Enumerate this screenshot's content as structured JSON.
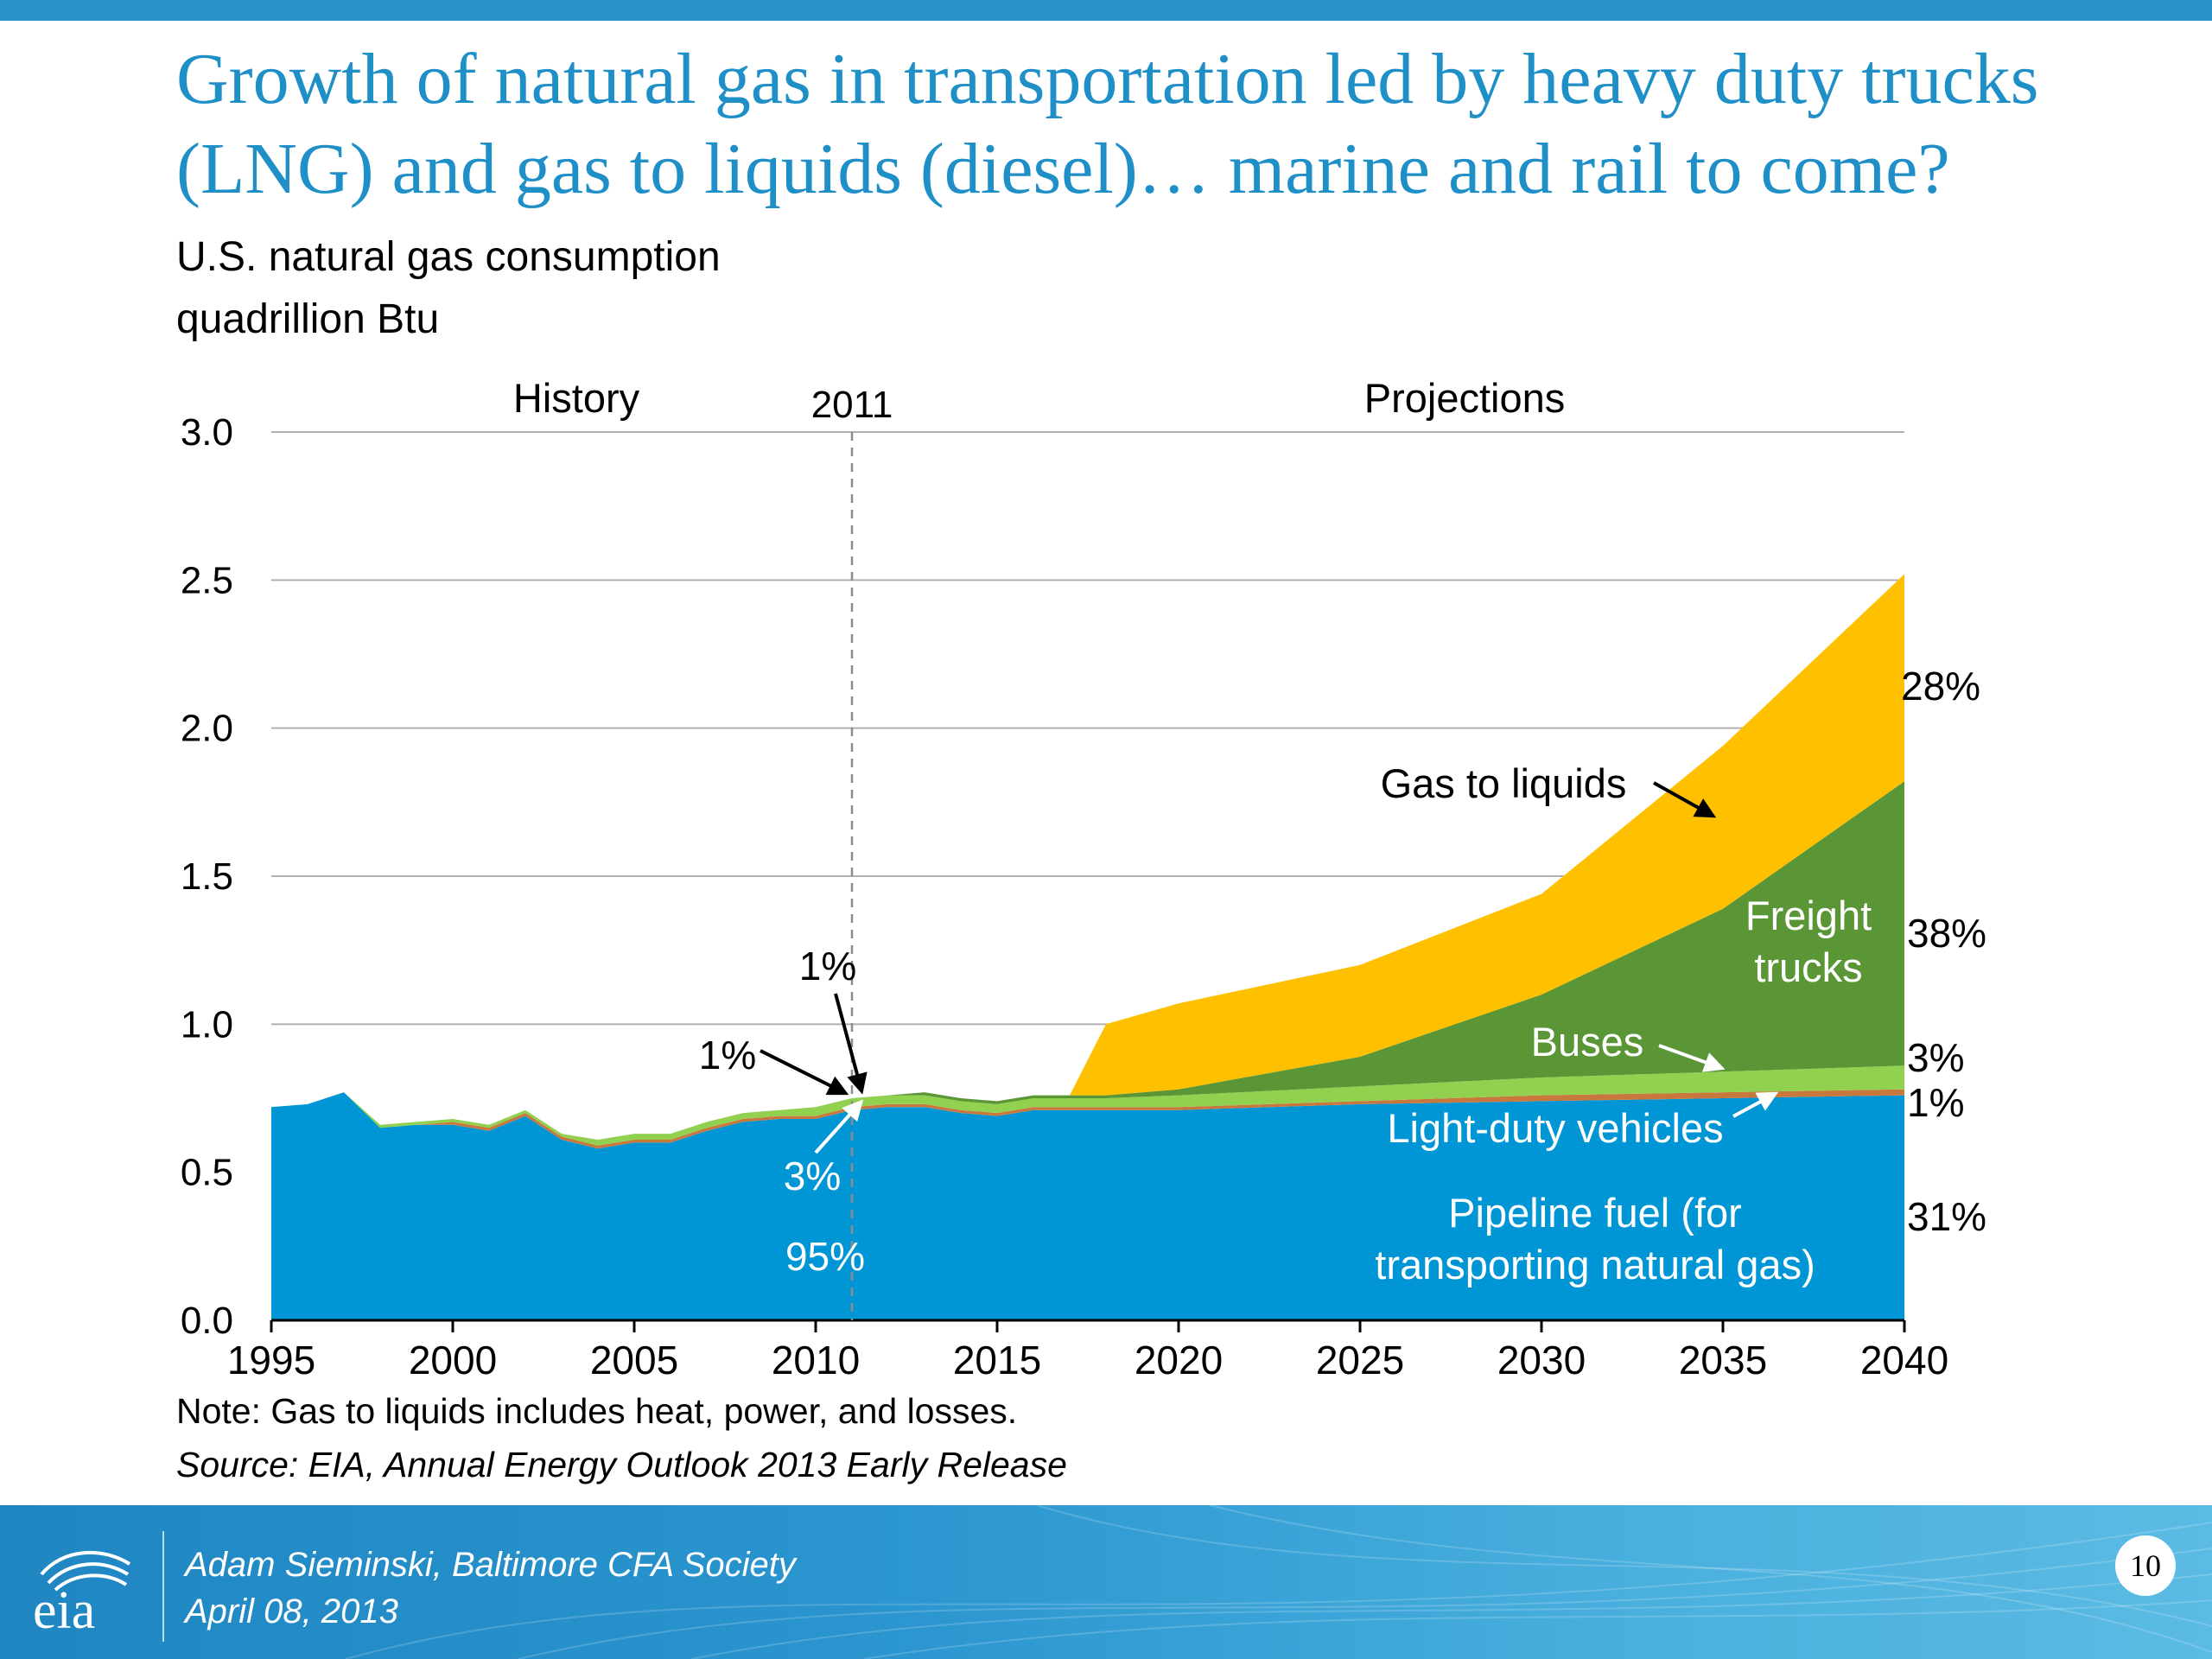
{
  "slide": {
    "title_line1": "Growth of natural gas in transportation led by heavy duty trucks",
    "title_line2": "(LNG) and gas to liquids (diesel)… marine and rail to come?",
    "note": "Note:  Gas to liquids includes heat, power, and losses.",
    "source": "Source:  EIA, Annual Energy Outlook 2013 Early Release",
    "presenter": "Adam Sieminski, Baltimore CFA Society",
    "date": "April 08, 2013",
    "page_number": "10",
    "logo_text": "eia"
  },
  "chart_data": {
    "type": "area",
    "stacked": true,
    "title": "U.S. natural gas consumption",
    "ylabel": "quadrillion Btu",
    "xlabel": "",
    "xlim": [
      1995,
      2040
    ],
    "ylim": [
      0,
      3.0
    ],
    "x_ticks": [
      "1995",
      "2000",
      "2005",
      "2010",
      "2015",
      "2020",
      "2025",
      "2030",
      "2035",
      "2040"
    ],
    "y_ticks": [
      "0.0",
      "0.5",
      "1.0",
      "1.5",
      "2.0",
      "2.5",
      "3.0"
    ],
    "grid": "horizontal",
    "divider_year": 2011,
    "divider_label": "2011",
    "history_label": "History",
    "projections_label": "Projections",
    "x": [
      1995,
      1996,
      1997,
      1998,
      1999,
      2000,
      2001,
      2002,
      2003,
      2004,
      2005,
      2006,
      2007,
      2008,
      2009,
      2010,
      2011,
      2012,
      2013,
      2014,
      2015,
      2016,
      2017,
      2018,
      2020,
      2025,
      2030,
      2035,
      2040
    ],
    "series": [
      {
        "name": "Pipeline fuel (for transporting natural gas)",
        "color": "#0096d6",
        "values": [
          0.72,
          0.73,
          0.77,
          0.65,
          0.66,
          0.66,
          0.64,
          0.69,
          0.61,
          0.58,
          0.6,
          0.6,
          0.64,
          0.67,
          0.68,
          0.68,
          0.71,
          0.72,
          0.72,
          0.7,
          0.69,
          0.71,
          0.71,
          0.71,
          0.71,
          0.73,
          0.74,
          0.75,
          0.76
        ]
      },
      {
        "name": "Light-duty vehicles",
        "color": "#c8783c",
        "values": [
          0.0,
          0.0,
          0.0,
          0.0,
          0.0,
          0.01,
          0.01,
          0.01,
          0.01,
          0.01,
          0.01,
          0.01,
          0.01,
          0.01,
          0.01,
          0.01,
          0.01,
          0.01,
          0.01,
          0.01,
          0.01,
          0.01,
          0.01,
          0.01,
          0.01,
          0.01,
          0.02,
          0.02,
          0.02
        ]
      },
      {
        "name": "Buses",
        "color": "#92d050",
        "values": [
          0.0,
          0.0,
          0.0,
          0.01,
          0.01,
          0.01,
          0.01,
          0.01,
          0.01,
          0.02,
          0.02,
          0.02,
          0.02,
          0.02,
          0.02,
          0.03,
          0.03,
          0.03,
          0.03,
          0.03,
          0.03,
          0.03,
          0.03,
          0.03,
          0.04,
          0.05,
          0.06,
          0.07,
          0.08
        ]
      },
      {
        "name": "Freight trucks",
        "color": "#5a9636",
        "values": [
          0.0,
          0.0,
          0.0,
          0.0,
          0.0,
          0.0,
          0.0,
          0.0,
          0.0,
          0.0,
          0.0,
          0.0,
          0.0,
          0.0,
          0.0,
          0.0,
          0.0,
          0.0,
          0.01,
          0.01,
          0.01,
          0.01,
          0.01,
          0.01,
          0.02,
          0.1,
          0.28,
          0.55,
          0.96
        ]
      },
      {
        "name": "Gas to liquids",
        "color": "#ffc000",
        "values": [
          0.0,
          0.0,
          0.0,
          0.0,
          0.0,
          0.0,
          0.0,
          0.0,
          0.0,
          0.0,
          0.0,
          0.0,
          0.0,
          0.0,
          0.0,
          0.0,
          0.0,
          0.0,
          0.0,
          0.0,
          0.0,
          0.0,
          0.0,
          0.24,
          0.29,
          0.31,
          0.34,
          0.55,
          0.7
        ]
      }
    ],
    "area_labels": {
      "pipeline_1": "Pipeline fuel (for",
      "pipeline_2": "transporting natural gas)",
      "light_duty": "Light-duty vehicles",
      "buses": "Buses",
      "freight_1": "Freight",
      "freight_2": "trucks",
      "gtl": "Gas to liquids"
    },
    "share_labels_2011": {
      "pipeline": "95%",
      "buses": "3%",
      "light_duty": "1%",
      "freight": "1%"
    },
    "share_labels_2040": {
      "gtl": "28%",
      "freight": "38%",
      "buses": "3%",
      "light_duty": "1%",
      "pipeline": "31%"
    }
  }
}
